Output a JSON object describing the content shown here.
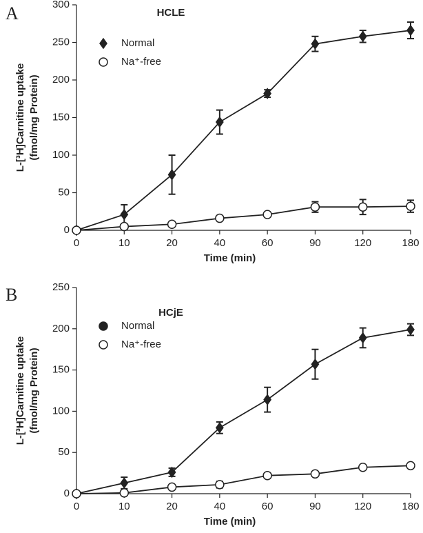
{
  "chart_data": [
    {
      "type": "line",
      "panel_label": "A",
      "title": "HCLE",
      "x_label": "Time (min)",
      "y_label": [
        "L-[³H]Carnitine uptake",
        "(fmol/mg Protein)"
      ],
      "categories": [
        "0",
        "10",
        "20",
        "40",
        "60",
        "90",
        "120",
        "180"
      ],
      "ylim": [
        0,
        300
      ],
      "yticks": [
        0,
        50,
        100,
        150,
        200,
        250,
        300
      ],
      "series": [
        {
          "name": "Normal",
          "color": "#222222",
          "marker": "diamond",
          "values": [
            0,
            21,
            74,
            144,
            182,
            248,
            258,
            266
          ],
          "errors": [
            0,
            13,
            26,
            16,
            5,
            10,
            8,
            11
          ]
        },
        {
          "name": "Na⁺-free",
          "color": "#222222",
          "marker": "circle",
          "values": [
            0,
            5,
            8,
            16,
            21,
            31,
            31,
            32
          ],
          "errors": [
            0,
            0,
            0,
            0,
            0,
            7,
            10,
            8
          ]
        }
      ]
    },
    {
      "type": "line",
      "panel_label": "B",
      "title": "HCjE",
      "x_label": "Time (min)",
      "y_label": [
        "L-[³H]Carnitine uptake",
        "(fmol/mg Protein)"
      ],
      "categories": [
        "0",
        "10",
        "20",
        "40",
        "60",
        "90",
        "120",
        "180"
      ],
      "ylim": [
        0,
        250
      ],
      "yticks": [
        0,
        50,
        100,
        150,
        200,
        250
      ],
      "series": [
        {
          "name": "Normal",
          "color": "#222222",
          "marker": "diamond",
          "values": [
            0,
            13,
            26,
            80,
            114,
            157,
            189,
            199
          ],
          "errors": [
            0,
            7,
            5,
            7,
            15,
            18,
            12,
            7
          ]
        },
        {
          "name": "Na⁺-free",
          "color": "#222222",
          "marker": "circle",
          "values": [
            0,
            1,
            8,
            11,
            22,
            24,
            32,
            34
          ],
          "errors": [
            0,
            0,
            0,
            4,
            2,
            3,
            2,
            3
          ]
        }
      ]
    }
  ]
}
